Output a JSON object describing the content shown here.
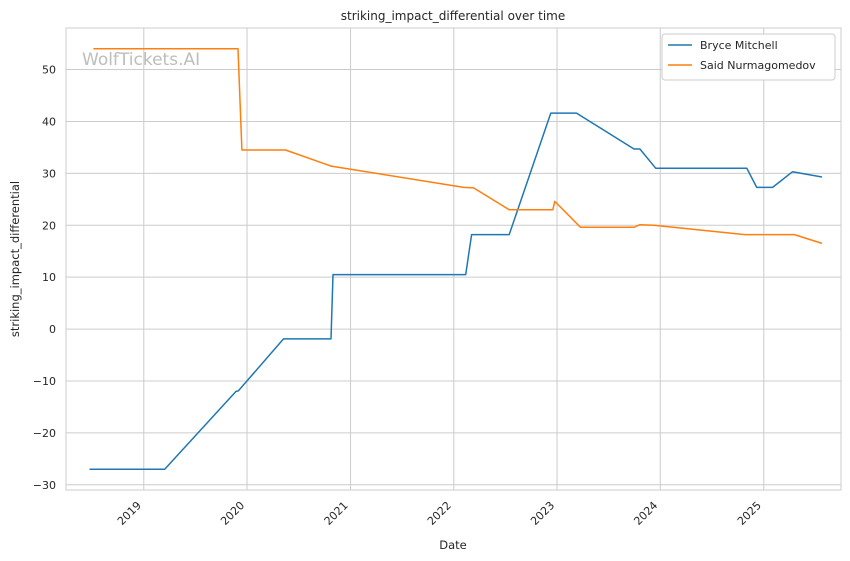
{
  "chart_data": {
    "type": "line",
    "title": "striking_impact_differential over time",
    "xlabel": "Date",
    "ylabel": "striking_impact_differential",
    "x_axis_type": "date",
    "xlim": [
      "2018-04-01",
      "2025-10-01"
    ],
    "ylim": [
      -31,
      58
    ],
    "x_ticks": [
      {
        "label": "2019",
        "date": "2019-01-01"
      },
      {
        "label": "2020",
        "date": "2020-01-01"
      },
      {
        "label": "2021",
        "date": "2021-01-01"
      },
      {
        "label": "2022",
        "date": "2022-01-01"
      },
      {
        "label": "2023",
        "date": "2023-01-01"
      },
      {
        "label": "2024",
        "date": "2024-01-01"
      },
      {
        "label": "2025",
        "date": "2025-01-01"
      }
    ],
    "y_ticks": [
      -30,
      -20,
      -10,
      0,
      10,
      20,
      30,
      40,
      50
    ],
    "y_tick_labels": [
      "−30",
      "−20",
      "−10",
      "0",
      "10",
      "20",
      "30",
      "40",
      "50"
    ],
    "grid": true,
    "legend_position": "top-right",
    "watermark": "WolfTickets.AI",
    "series": [
      {
        "name": "Bryce Mitchell",
        "color": "#1f77b4",
        "points": [
          [
            "2018-06-23",
            -27.0
          ],
          [
            "2019-03-16",
            -27.0
          ],
          [
            "2019-11-23",
            -12.0
          ],
          [
            "2019-12-01",
            -11.9
          ],
          [
            "2020-05-09",
            -1.9
          ],
          [
            "2020-10-24",
            -1.9
          ],
          [
            "2020-10-31",
            10.5
          ],
          [
            "2022-02-12",
            10.5
          ],
          [
            "2022-03-05",
            18.2
          ],
          [
            "2022-07-16",
            18.2
          ],
          [
            "2022-12-10",
            41.6
          ],
          [
            "2023-03-11",
            41.6
          ],
          [
            "2023-09-30",
            34.7
          ],
          [
            "2023-10-21",
            34.7
          ],
          [
            "2023-12-16",
            31.0
          ],
          [
            "2024-11-02",
            31.0
          ],
          [
            "2024-12-07",
            27.3
          ],
          [
            "2025-02-01",
            27.3
          ],
          [
            "2025-04-12",
            30.3
          ],
          [
            "2025-07-26",
            29.3
          ]
        ]
      },
      {
        "name": "Said Nurmagomedov",
        "color": "#ff7f0e",
        "points": [
          [
            "2018-07-07",
            54.0
          ],
          [
            "2019-11-30",
            54.0
          ],
          [
            "2019-12-14",
            34.5
          ],
          [
            "2020-05-16",
            34.5
          ],
          [
            "2020-10-24",
            31.4
          ],
          [
            "2022-02-05",
            27.3
          ],
          [
            "2022-03-12",
            27.2
          ],
          [
            "2022-07-16",
            23.0
          ],
          [
            "2022-12-17",
            23.0
          ],
          [
            "2022-12-24",
            24.6
          ],
          [
            "2023-03-25",
            19.6
          ],
          [
            "2023-09-30",
            19.6
          ],
          [
            "2023-10-21",
            20.1
          ],
          [
            "2023-12-09",
            20.0
          ],
          [
            "2024-10-26",
            18.2
          ],
          [
            "2025-04-19",
            18.2
          ],
          [
            "2025-07-26",
            16.5
          ]
        ]
      }
    ]
  }
}
